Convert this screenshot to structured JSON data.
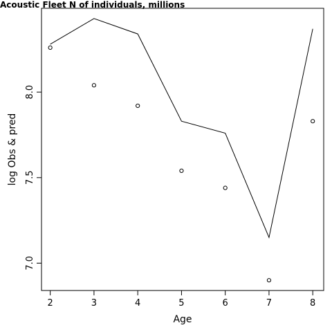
{
  "chart_data": {
    "type": "line",
    "title": "Acoustic Fleet   N of individuals, millions",
    "xlabel": "Age",
    "ylabel": "log Obs & pred",
    "xlim": [
      1.8,
      8.25
    ],
    "ylim": [
      6.84,
      8.49
    ],
    "x_ticks": [
      2,
      3,
      4,
      5,
      6,
      7,
      8
    ],
    "y_ticks": [
      7.0,
      7.5,
      8.0
    ],
    "y_tick_labels": [
      "7.0",
      "7.5",
      "8.0"
    ],
    "grid": false,
    "legend": "none",
    "series": [
      {
        "style": "line",
        "x": [
          2,
          3,
          4,
          5,
          6,
          7,
          8
        ],
        "values": [
          8.28,
          8.43,
          8.34,
          7.83,
          7.76,
          7.15,
          8.37
        ]
      },
      {
        "style": "points",
        "x": [
          2,
          3,
          4,
          5,
          6,
          7,
          8
        ],
        "values": [
          8.26,
          8.04,
          7.92,
          7.54,
          7.44,
          6.9,
          7.83
        ]
      }
    ]
  }
}
